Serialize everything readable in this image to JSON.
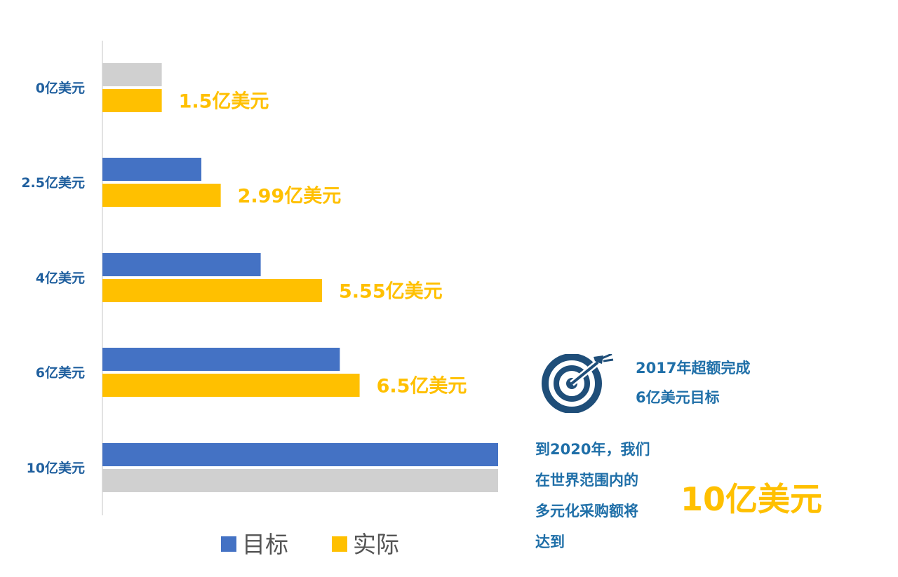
{
  "colors": {
    "target": "#4472c4",
    "actual": "#ffc000",
    "placeholder": "#d0d0d0",
    "category_text": "#1f5f9e",
    "note_text": "#1f6fa8",
    "icon": "#1f4e79"
  },
  "chart_data": {
    "type": "bar",
    "orientation": "horizontal",
    "categories": [
      "0亿美元",
      "2.5亿美元",
      "4亿美元",
      "6亿美元",
      "10亿美元"
    ],
    "series": [
      {
        "name": "目标",
        "values": [
          0,
          2.5,
          4,
          6,
          10
        ]
      },
      {
        "name": "实际",
        "values": [
          1.5,
          2.99,
          5.55,
          6.5,
          null
        ]
      }
    ],
    "data_labels": [
      "1.5亿美元",
      "2.99亿美元",
      "5.55亿美元",
      "6.5亿美元",
      ""
    ],
    "xlim": [
      0,
      10
    ],
    "grid": false,
    "legend_position": "bottom"
  },
  "note_2017": {
    "icon": "target-icon",
    "lines": [
      "2017年超额完成",
      "6亿美元目标"
    ]
  },
  "note_2020": {
    "lines": [
      "到2020年，我们",
      "在世界范围内的",
      "多元化采购额将",
      "达到"
    ],
    "amount": "10亿美元"
  }
}
